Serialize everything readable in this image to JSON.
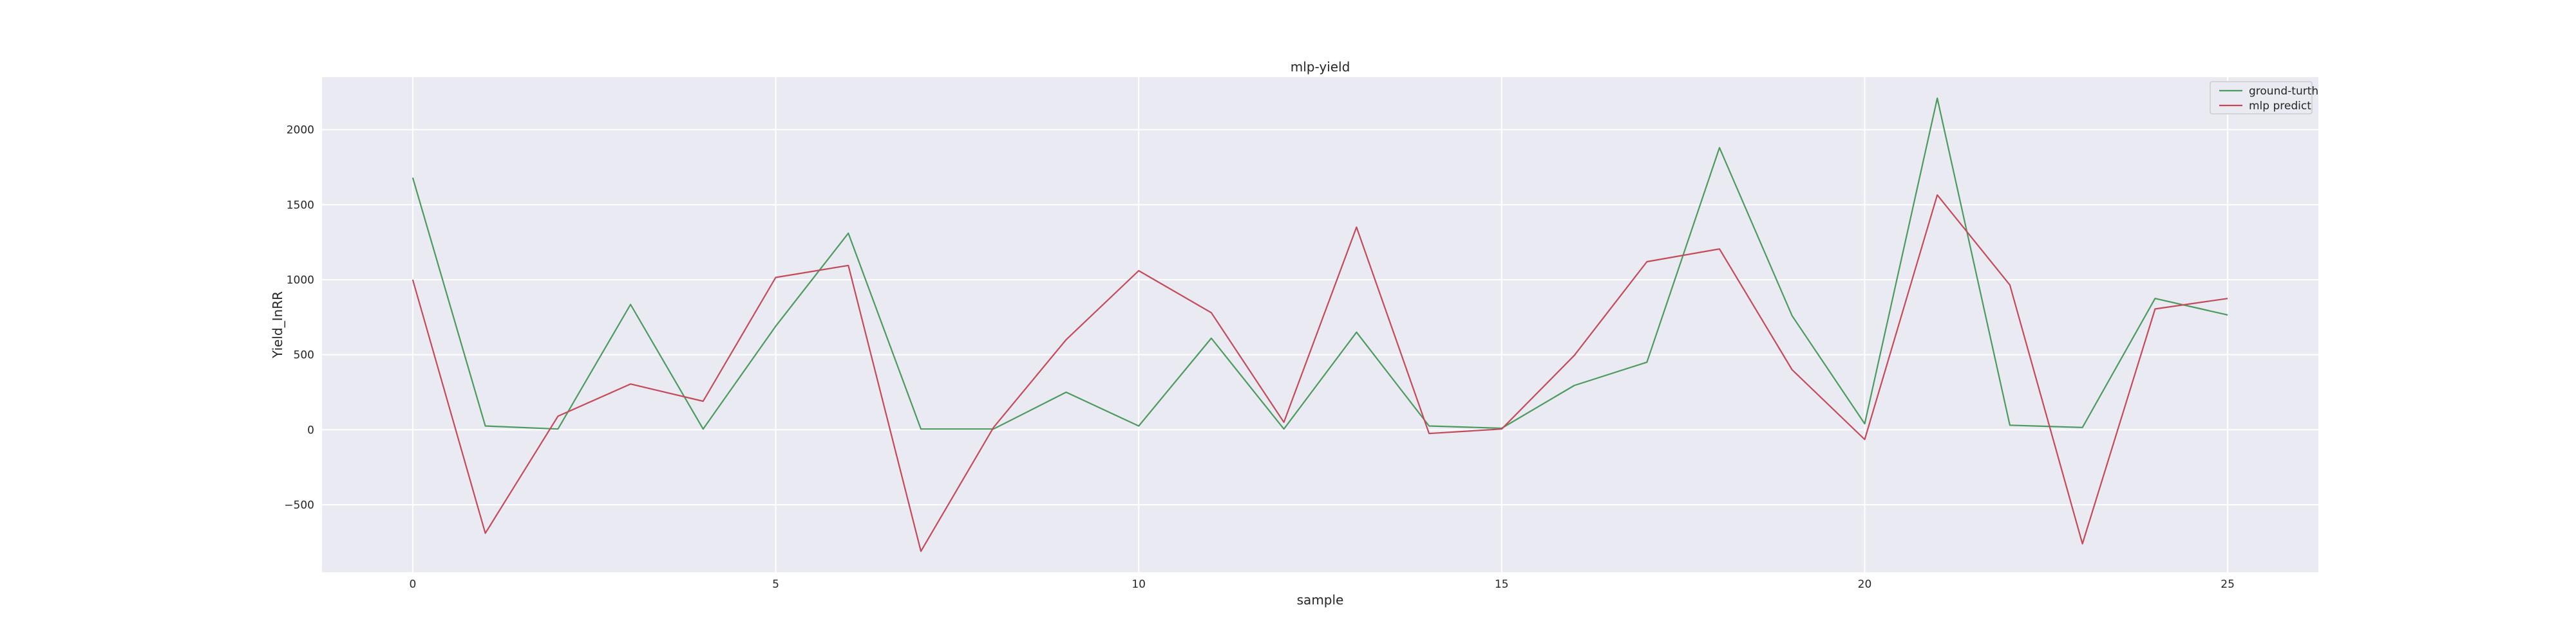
{
  "chart_data": {
    "type": "line",
    "title": "mlp-yield",
    "xlabel": "sample",
    "ylabel": "Yield_InRR",
    "xlim": [
      -1.25,
      26.25
    ],
    "ylim": [
      -950,
      2350
    ],
    "x_ticks": [
      0,
      5,
      10,
      15,
      20,
      25
    ],
    "y_ticks": [
      -500,
      0,
      500,
      1000,
      1500,
      2000
    ],
    "x_tick_labels": [
      "0",
      "5",
      "10",
      "15",
      "20",
      "25"
    ],
    "y_tick_labels": [
      "−500",
      "0",
      "500",
      "1000",
      "1500",
      "2000"
    ],
    "grid": true,
    "legend_position": "top-right",
    "x": [
      0,
      1,
      2,
      3,
      4,
      5,
      6,
      7,
      8,
      9,
      10,
      11,
      12,
      13,
      14,
      15,
      16,
      17,
      18,
      19,
      20,
      21,
      22,
      23,
      24,
      25
    ],
    "series": [
      {
        "name": "ground-turth",
        "color": "#4c9a5e",
        "values": [
          1680,
          25,
          5,
          835,
          5,
          690,
          1310,
          5,
          5,
          250,
          25,
          610,
          5,
          650,
          25,
          10,
          295,
          450,
          1880,
          760,
          40,
          2210,
          30,
          15,
          875,
          765
        ]
      },
      {
        "name": "mlp predict",
        "color": "#c44a5a",
        "values": [
          1000,
          -690,
          90,
          305,
          190,
          1015,
          1095,
          -810,
          15,
          600,
          1060,
          780,
          50,
          1350,
          -25,
          5,
          495,
          1120,
          1205,
          400,
          -65,
          1565,
          965,
          -760,
          805,
          875
        ]
      }
    ]
  }
}
